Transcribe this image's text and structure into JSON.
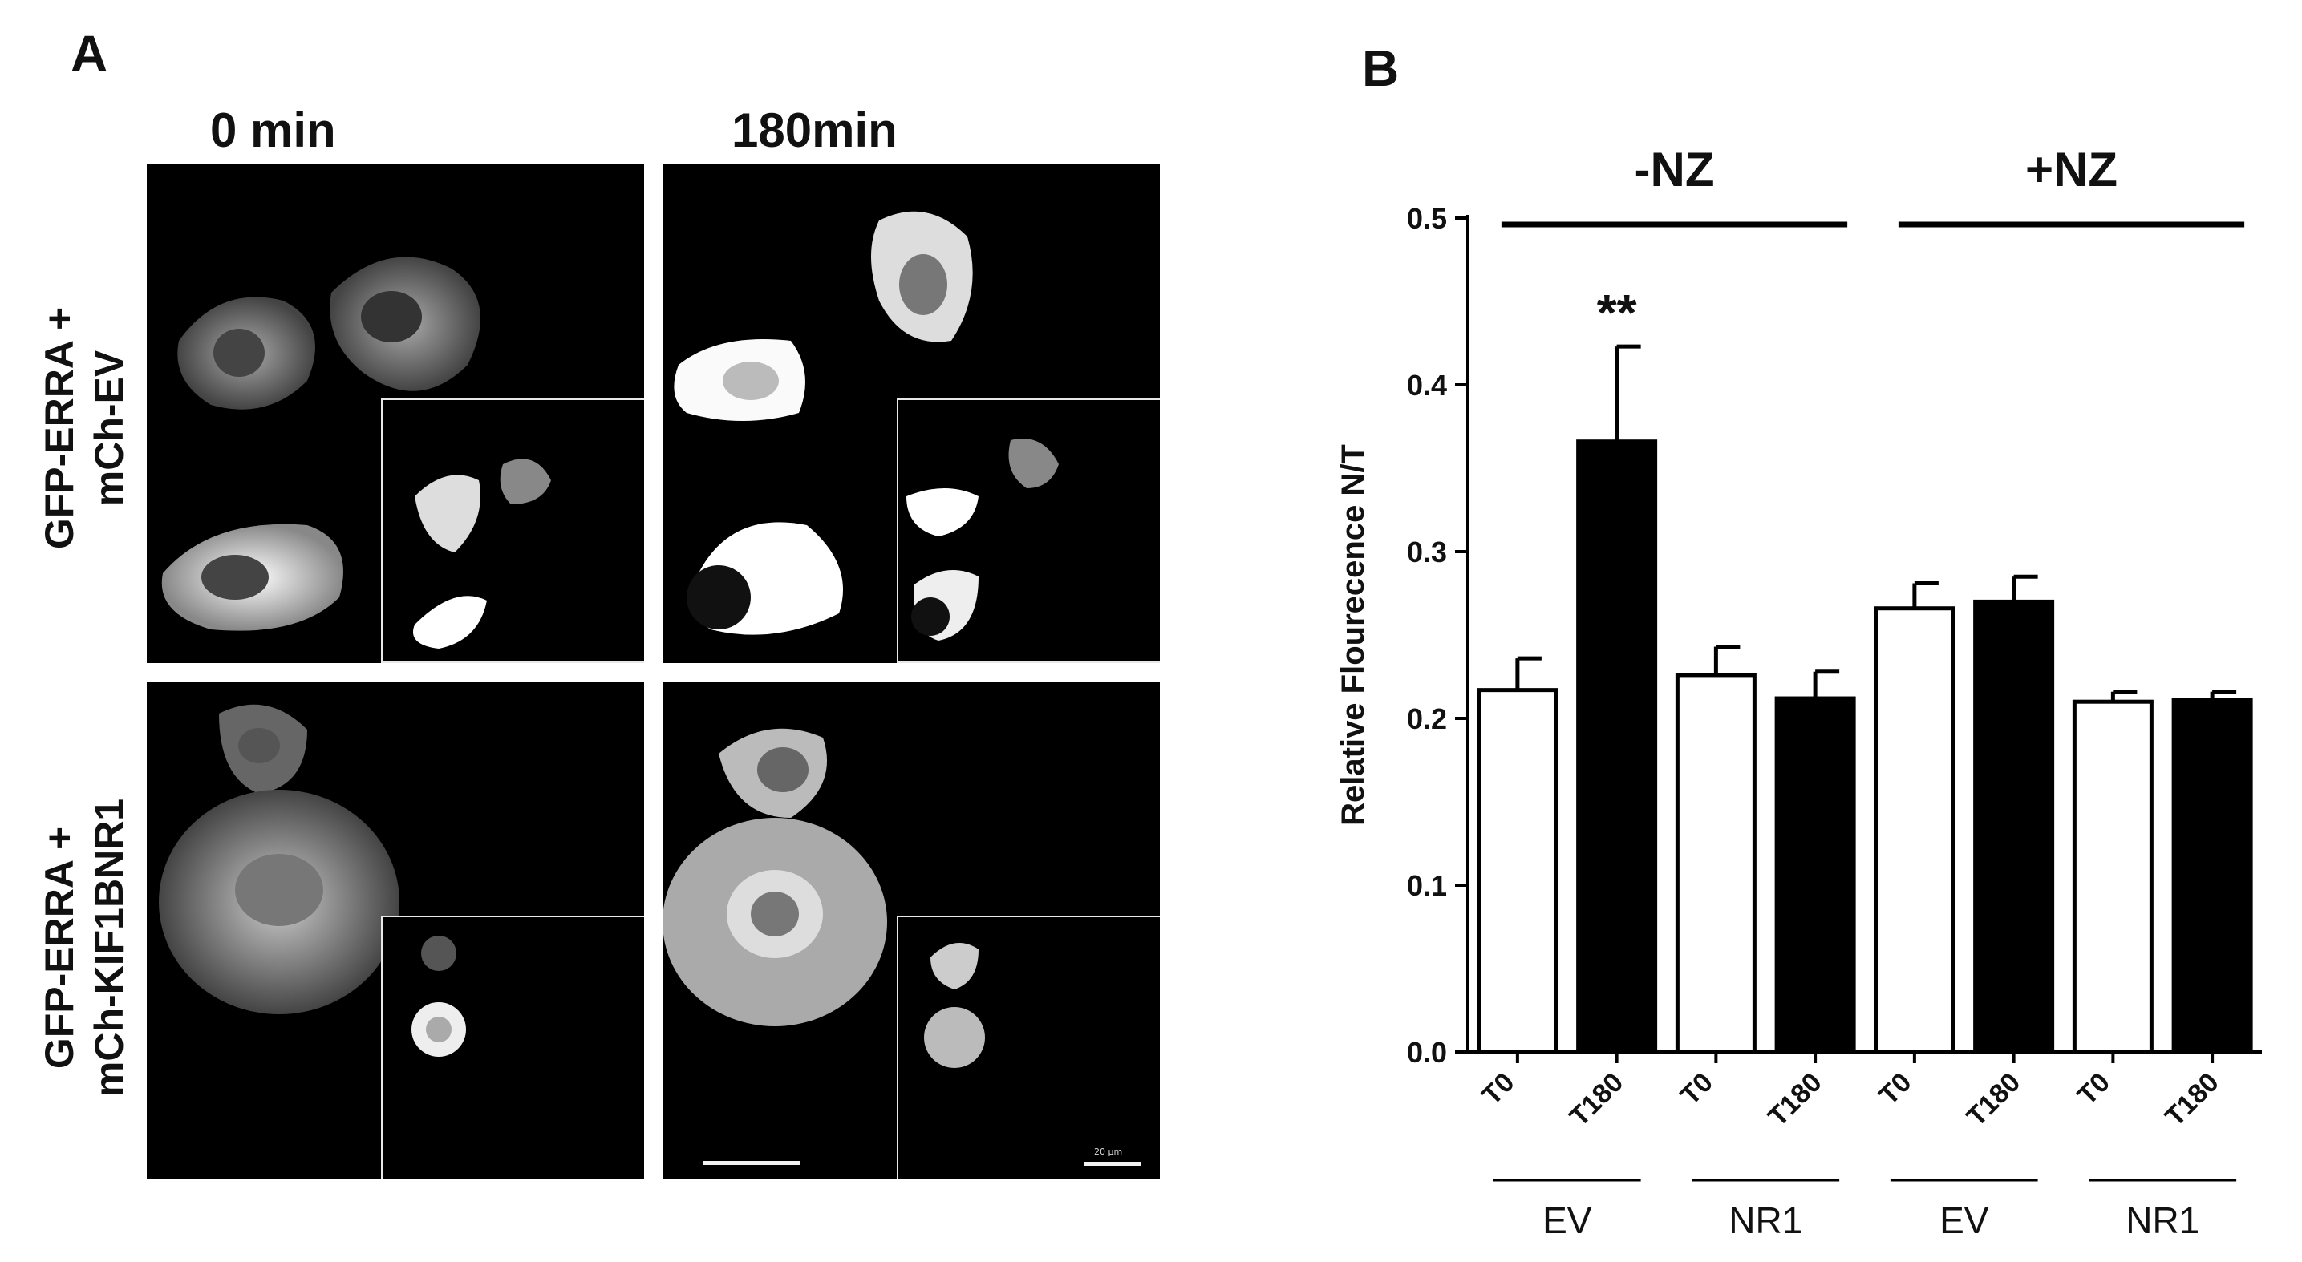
{
  "figure": {
    "panel_a": {
      "letter": "A",
      "col_labels": [
        "0 min",
        "180min"
      ],
      "row_labels": [
        [
          "GFP-ERRA +",
          "mCh-EV"
        ],
        [
          "GFP-ERRA +",
          "mCh-KIF1BNR1"
        ]
      ],
      "scale_label": "20 μm"
    },
    "panel_b": {
      "letter": "B"
    }
  },
  "chart_data": {
    "type": "bar",
    "ylabel": "Relative Flourecence N/T",
    "xlabel": "",
    "ylim": [
      0,
      0.5
    ],
    "yticks": [
      "0.0",
      "0.1",
      "0.2",
      "0.3",
      "0.4",
      "0.5"
    ],
    "categories": [
      "T0",
      "T180",
      "T0",
      "T180",
      "T0",
      "T180",
      "T0",
      "T180"
    ],
    "values": [
      0.217,
      0.366,
      0.226,
      0.212,
      0.266,
      0.27,
      0.21,
      0.211
    ],
    "errors": [
      0.019,
      0.057,
      0.017,
      0.016,
      0.015,
      0.015,
      0.006,
      0.005
    ],
    "fills": [
      "white",
      "black",
      "white",
      "black",
      "white",
      "black",
      "white",
      "black"
    ],
    "groups": [
      "EV",
      "NR1",
      "EV",
      "NR1"
    ],
    "conditions": [
      "-NZ",
      "+NZ"
    ],
    "annotations": [
      {
        "text": "**",
        "bar_index": 1
      }
    ],
    "colors": {
      "open": "#ffffff",
      "filled": "#000000"
    }
  }
}
